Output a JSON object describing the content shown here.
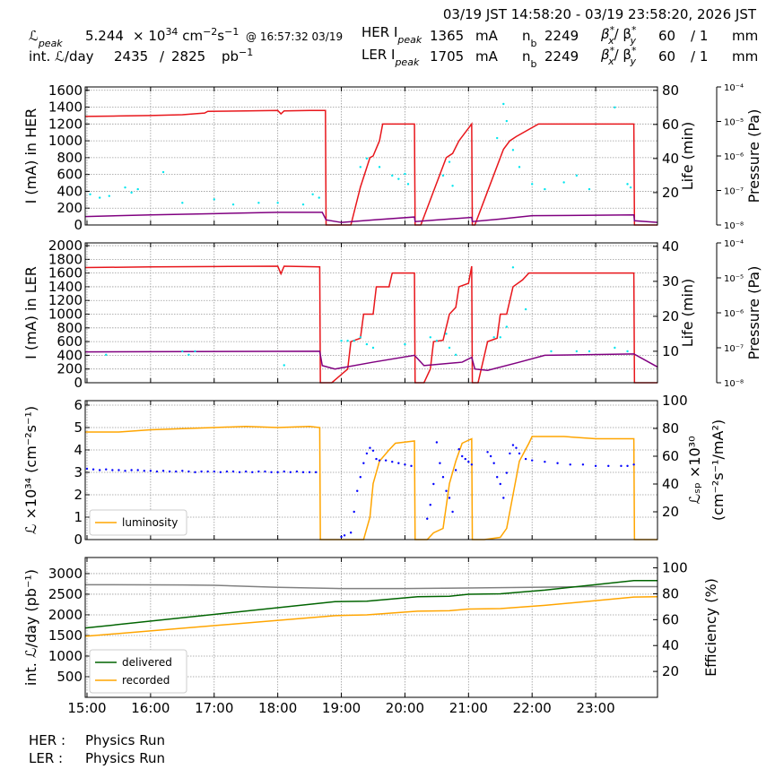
{
  "header": {
    "time_range": "03/19 JST 14:58:20 - 03/19 23:58:20, 2026 JST",
    "r1": [
      "ℒ",
      "peak",
      "5.244",
      "× 10",
      "34",
      " cm",
      "−2",
      "s",
      "−1",
      "@ 16:57:32 03/19",
      "HER I",
      "peak",
      "1365",
      "mA",
      "n",
      "b",
      "2249",
      "β",
      "*",
      "x",
      "/ β",
      "*",
      "y",
      "60",
      "/ 1",
      "mm"
    ],
    "r2": [
      "int. ℒ/day",
      "2435",
      "/",
      "2825",
      "pb",
      "−1",
      "LER I",
      "peak",
      "1705",
      "mA",
      "n",
      "b",
      "2249",
      "β",
      "*",
      "x",
      "/ β",
      "*",
      "y",
      "60",
      "/ 1",
      "mm"
    ]
  },
  "footer": [
    [
      "HER :",
      "Physics Run"
    ],
    [
      "LER :",
      "Physics Run"
    ]
  ],
  "chart_data": [
    {
      "type": "line",
      "ylabel": "I (mA) in HER",
      "y2label": [
        "Life (min)"
      ],
      "y3label": "Pressure (Pa)",
      "xlim": [
        14.972,
        23.972
      ],
      "ylim": [
        0,
        1640
      ],
      "yticks": [
        0,
        200,
        400,
        600,
        800,
        1000,
        1200,
        1400,
        1600
      ],
      "y2lim": [
        1,
        82
      ],
      "y2ticks": [
        20,
        40,
        60,
        80
      ],
      "y3lim": [
        1e-08,
        0.0001
      ],
      "y3scale": "log",
      "y3ticks": [
        {
          "value": 1e-08,
          "label": "10⁻⁸"
        },
        {
          "value": 1e-07,
          "label": "10⁻⁷"
        },
        {
          "value": 1e-06,
          "label": "10⁻⁶"
        },
        {
          "value": 1e-05,
          "label": "10⁻⁵"
        },
        {
          "value": 0.0001,
          "label": "10⁻⁴"
        }
      ],
      "grid": true,
      "series": [
        {
          "color": "#e8161b",
          "mode": "line",
          "x": [
            14.972,
            15.5,
            16.0,
            16.5,
            16.85,
            16.9,
            17.5,
            18.0,
            18.05,
            18.1,
            18.5,
            18.75,
            18.76,
            19.15,
            19.3,
            19.45,
            19.5,
            19.6,
            19.65,
            20.15,
            20.16,
            20.25,
            20.4,
            20.55,
            20.65,
            20.75,
            20.85,
            20.95,
            21.05,
            21.06,
            21.1,
            21.3,
            21.55,
            21.65,
            21.75,
            22.1,
            23.6,
            23.61,
            23.972
          ],
          "values": [
            1290,
            1295,
            1300,
            1310,
            1330,
            1350,
            1355,
            1360,
            1320,
            1355,
            1360,
            1360,
            0,
            0,
            450,
            800,
            820,
            1000,
            1200,
            1200,
            0,
            0,
            300,
            600,
            800,
            850,
            1000,
            1100,
            1200,
            0,
            0,
            400,
            900,
            1000,
            1050,
            1200,
            1200,
            0,
            0
          ]
        },
        {
          "color": "#800080",
          "mode": "line",
          "x": [
            14.972,
            16,
            17,
            18,
            18.7,
            18.76,
            19.0,
            19.5,
            20.15,
            20.16,
            20.5,
            21.05,
            21.06,
            21.5,
            22,
            23.6,
            23.61,
            23.972
          ],
          "values": [
            100,
            120,
            135,
            150,
            150,
            60,
            30,
            60,
            95,
            40,
            60,
            90,
            40,
            70,
            110,
            120,
            50,
            30
          ]
        },
        {
          "color": "#00e5ee",
          "mode": "scatter",
          "axis": "y2",
          "x": [
            15.05,
            15.2,
            15.35,
            15.6,
            15.7,
            15.8,
            16.2,
            16.5,
            17.0,
            17.3,
            17.7,
            18.0,
            18.4,
            18.55,
            18.65,
            19.3,
            19.4,
            19.6,
            19.8,
            19.9,
            20.0,
            20.05,
            20.6,
            20.7,
            20.75,
            21.45,
            21.55,
            21.6,
            21.7,
            21.8,
            22.0,
            22.2,
            22.5,
            22.7,
            22.9,
            23.3,
            23.5,
            23.55
          ],
          "values": [
            19,
            17,
            18,
            23,
            20,
            22,
            32,
            14,
            16,
            13,
            14,
            14,
            13,
            19,
            17,
            35,
            40,
            35,
            30,
            28,
            31,
            25,
            30,
            38,
            24,
            52,
            72,
            62,
            45,
            35,
            25,
            22,
            26,
            30,
            22,
            70,
            25,
            23
          ]
        }
      ]
    },
    {
      "type": "line",
      "ylabel": "I (mA) in LER",
      "y2label": [
        "Life (min)"
      ],
      "y3label": "Pressure (Pa)",
      "xlim": [
        14.972,
        23.972
      ],
      "ylim": [
        0,
        2040
      ],
      "yticks": [
        0,
        200,
        400,
        600,
        800,
        1000,
        1200,
        1400,
        1600,
        1800,
        2000
      ],
      "y2lim": [
        1,
        41
      ],
      "y2ticks": [
        10,
        20,
        30,
        40
      ],
      "y3lim": [
        1e-08,
        0.0001
      ],
      "y3scale": "log",
      "y3ticks": [
        {
          "value": 1e-08,
          "label": "10⁻⁸"
        },
        {
          "value": 1e-07,
          "label": "10⁻⁷"
        },
        {
          "value": 1e-06,
          "label": "10⁻⁶"
        },
        {
          "value": 1e-05,
          "label": "10⁻⁵"
        },
        {
          "value": 0.0001,
          "label": "10⁻⁴"
        }
      ],
      "grid": true,
      "series": [
        {
          "color": "#e8161b",
          "mode": "line",
          "x": [
            14.972,
            16,
            17,
            18.0,
            18.05,
            18.1,
            18.66,
            18.67,
            18.85,
            19.1,
            19.15,
            19.3,
            19.35,
            19.5,
            19.55,
            19.75,
            19.8,
            20.15,
            20.16,
            20.3,
            20.4,
            20.45,
            20.6,
            20.7,
            20.8,
            20.85,
            21.0,
            21.05,
            21.06,
            21.15,
            21.25,
            21.3,
            21.45,
            21.5,
            21.6,
            21.7,
            21.85,
            21.95,
            23.6,
            23.61,
            23.972
          ],
          "values": [
            1680,
            1690,
            1695,
            1700,
            1590,
            1700,
            1690,
            0,
            0,
            200,
            600,
            650,
            1000,
            1000,
            1400,
            1400,
            1600,
            1600,
            0,
            0,
            200,
            600,
            620,
            1000,
            1100,
            1400,
            1450,
            1700,
            0,
            0,
            400,
            600,
            650,
            1000,
            1000,
            1400,
            1500,
            1600,
            1600,
            0,
            0
          ]
        },
        {
          "color": "#800080",
          "mode": "line",
          "x": [
            14.972,
            18.66,
            18.7,
            18.9,
            19.5,
            20.15,
            20.3,
            20.9,
            21.05,
            21.1,
            21.3,
            21.8,
            22.2,
            23.6,
            23.972
          ],
          "values": [
            450,
            460,
            250,
            200,
            300,
            400,
            250,
            300,
            370,
            200,
            180,
            300,
            400,
            420,
            230
          ]
        },
        {
          "color": "#00e5ee",
          "mode": "scatter",
          "axis": "y2",
          "x": [
            15.3,
            16.5,
            16.6,
            16.7,
            18.1,
            19.0,
            19.1,
            19.2,
            19.3,
            19.4,
            19.5,
            20.0,
            20.4,
            20.5,
            20.65,
            20.7,
            20.8,
            21.4,
            21.5,
            21.6,
            21.7,
            21.9,
            22.3,
            22.7,
            22.9,
            23.3,
            23.5
          ],
          "values": [
            9,
            10,
            9,
            10,
            6,
            13,
            13,
            13,
            14,
            12,
            11,
            12,
            14,
            13,
            15,
            11,
            9,
            14,
            14,
            17,
            34,
            22,
            10,
            10,
            10,
            11,
            10
          ]
        }
      ]
    },
    {
      "type": "line",
      "ylabel": "ℒ ×10³⁴ (cm⁻²s⁻¹)",
      "y2label": [
        "ℒₛₚ ×10³⁰",
        "(cm⁻²s⁻¹/mA²)"
      ],
      "xlim": [
        14.972,
        23.972
      ],
      "ylim": [
        0,
        6.2
      ],
      "yticks": [
        0,
        1,
        2,
        3,
        4,
        5,
        6
      ],
      "y2lim": [
        0,
        100
      ],
      "y2ticks": [
        20,
        40,
        60,
        80,
        100
      ],
      "grid": true,
      "legend": "lower left",
      "series": [
        {
          "name": "luminosity",
          "color": "#ffa500",
          "mode": "line",
          "x": [
            14.972,
            15.5,
            16,
            16.5,
            17,
            17.5,
            18,
            18.5,
            18.66,
            18.67,
            19.35,
            19.45,
            19.5,
            19.6,
            19.75,
            19.85,
            20.15,
            20.16,
            20.35,
            20.45,
            20.6,
            20.7,
            20.8,
            20.9,
            21.05,
            21.06,
            21.25,
            21.5,
            21.6,
            21.7,
            21.8,
            21.95,
            22,
            22.5,
            23,
            23.5,
            23.6,
            23.61,
            23.972
          ],
          "values": [
            4.8,
            4.8,
            4.9,
            4.95,
            5.0,
            5.05,
            5.0,
            5.05,
            5.0,
            0,
            0,
            1.0,
            2.5,
            3.5,
            4.0,
            4.3,
            4.4,
            0,
            0,
            0.3,
            0.5,
            2.5,
            3.5,
            4.3,
            4.5,
            0,
            0,
            0.1,
            0.5,
            2.0,
            3.5,
            4.3,
            4.6,
            4.6,
            4.5,
            4.5,
            4.5,
            0,
            0
          ]
        },
        {
          "color": "#0000ff",
          "mode": "scatter",
          "axis": "y2",
          "x": [
            15.0,
            15.1,
            15.2,
            15.3,
            15.4,
            15.5,
            15.6,
            15.7,
            15.8,
            15.9,
            16.0,
            16.1,
            16.2,
            16.3,
            16.4,
            16.5,
            16.6,
            16.7,
            16.8,
            16.9,
            17.0,
            17.1,
            17.2,
            17.3,
            17.4,
            17.5,
            17.6,
            17.7,
            17.8,
            17.9,
            18.0,
            18.1,
            18.2,
            18.3,
            18.4,
            18.5,
            18.6,
            19.0,
            19.05,
            19.15,
            19.2,
            19.25,
            19.3,
            19.35,
            19.4,
            19.45,
            19.5,
            19.55,
            19.6,
            19.7,
            19.8,
            19.9,
            20.0,
            20.1,
            20.35,
            20.4,
            20.45,
            20.5,
            20.55,
            20.6,
            20.65,
            20.7,
            20.75,
            20.8,
            20.85,
            20.9,
            20.95,
            21.0,
            21.05,
            21.3,
            21.35,
            21.4,
            21.45,
            21.5,
            21.55,
            21.6,
            21.65,
            21.7,
            21.75,
            21.8,
            21.9,
            22.0,
            22.2,
            22.4,
            22.6,
            22.8,
            23.0,
            23.2,
            23.4,
            23.5,
            23.6
          ],
          "values": [
            51,
            50.5,
            50,
            50.5,
            50,
            50,
            49.5,
            50,
            50,
            49.5,
            49.5,
            49,
            49.5,
            49,
            49,
            49.5,
            49,
            48.5,
            49,
            49,
            49,
            48.5,
            49,
            49,
            48.5,
            49,
            48.5,
            49,
            49,
            48.5,
            48.5,
            49,
            48.5,
            49,
            48.5,
            48.5,
            48.5,
            2,
            3,
            5,
            20,
            35,
            45,
            55,
            62,
            66,
            64,
            58,
            57,
            57,
            56,
            55,
            54,
            53,
            15,
            25,
            40,
            70,
            55,
            45,
            35,
            30,
            20,
            50,
            65,
            60,
            58,
            56,
            54,
            63,
            60,
            55,
            45,
            40,
            30,
            48,
            62,
            68,
            66,
            62,
            58,
            57,
            56,
            55,
            54,
            54,
            53,
            53,
            53,
            53,
            54
          ]
        }
      ]
    },
    {
      "type": "line",
      "ylabel": "int. ℒ/day (pb⁻¹)",
      "y2label": [
        "Efficiency (%)"
      ],
      "xlim": [
        14.972,
        23.972
      ],
      "ylim": [
        0,
        3390
      ],
      "yticks": [
        500,
        1000,
        1500,
        2000,
        2500,
        3000
      ],
      "y2lim": [
        0,
        108
      ],
      "y2ticks": [
        20,
        40,
        60,
        80,
        100
      ],
      "xticks": [
        {
          "value": 15,
          "label": "15:00"
        },
        {
          "value": 16,
          "label": "16:00"
        },
        {
          "value": 17,
          "label": "17:00"
        },
        {
          "value": 18,
          "label": "18:00"
        },
        {
          "value": 19,
          "label": "19:00"
        },
        {
          "value": 20,
          "label": "20:00"
        },
        {
          "value": 21,
          "label": "21:00"
        },
        {
          "value": 22,
          "label": "22:00"
        },
        {
          "value": 23,
          "label": "23:00"
        }
      ],
      "grid": true,
      "legend": "lower left",
      "series": [
        {
          "color": "#808080",
          "mode": "line",
          "axis": "y2",
          "x": [
            14.972,
            16.5,
            17.0,
            18.0,
            19.0,
            20.0,
            21.0,
            22.0,
            23.0,
            23.972
          ],
          "values": [
            87,
            86.8,
            86.5,
            85,
            84,
            84,
            84.5,
            85,
            85.5,
            85.5
          ]
        },
        {
          "name": "delivered",
          "color": "#006400",
          "mode": "line",
          "x": [
            14.972,
            18.9,
            19.4,
            20.2,
            20.7,
            21.0,
            21.5,
            22.2,
            23.6,
            23.972
          ],
          "values": [
            1680,
            2320,
            2330,
            2440,
            2450,
            2500,
            2510,
            2600,
            2830,
            2830
          ]
        },
        {
          "name": "recorded",
          "color": "#ffa500",
          "mode": "line",
          "x": [
            14.972,
            18.9,
            19.4,
            20.2,
            20.7,
            21.0,
            21.5,
            22.2,
            23.6,
            23.972
          ],
          "values": [
            1480,
            1980,
            2000,
            2090,
            2100,
            2140,
            2150,
            2230,
            2430,
            2440
          ]
        }
      ]
    }
  ]
}
